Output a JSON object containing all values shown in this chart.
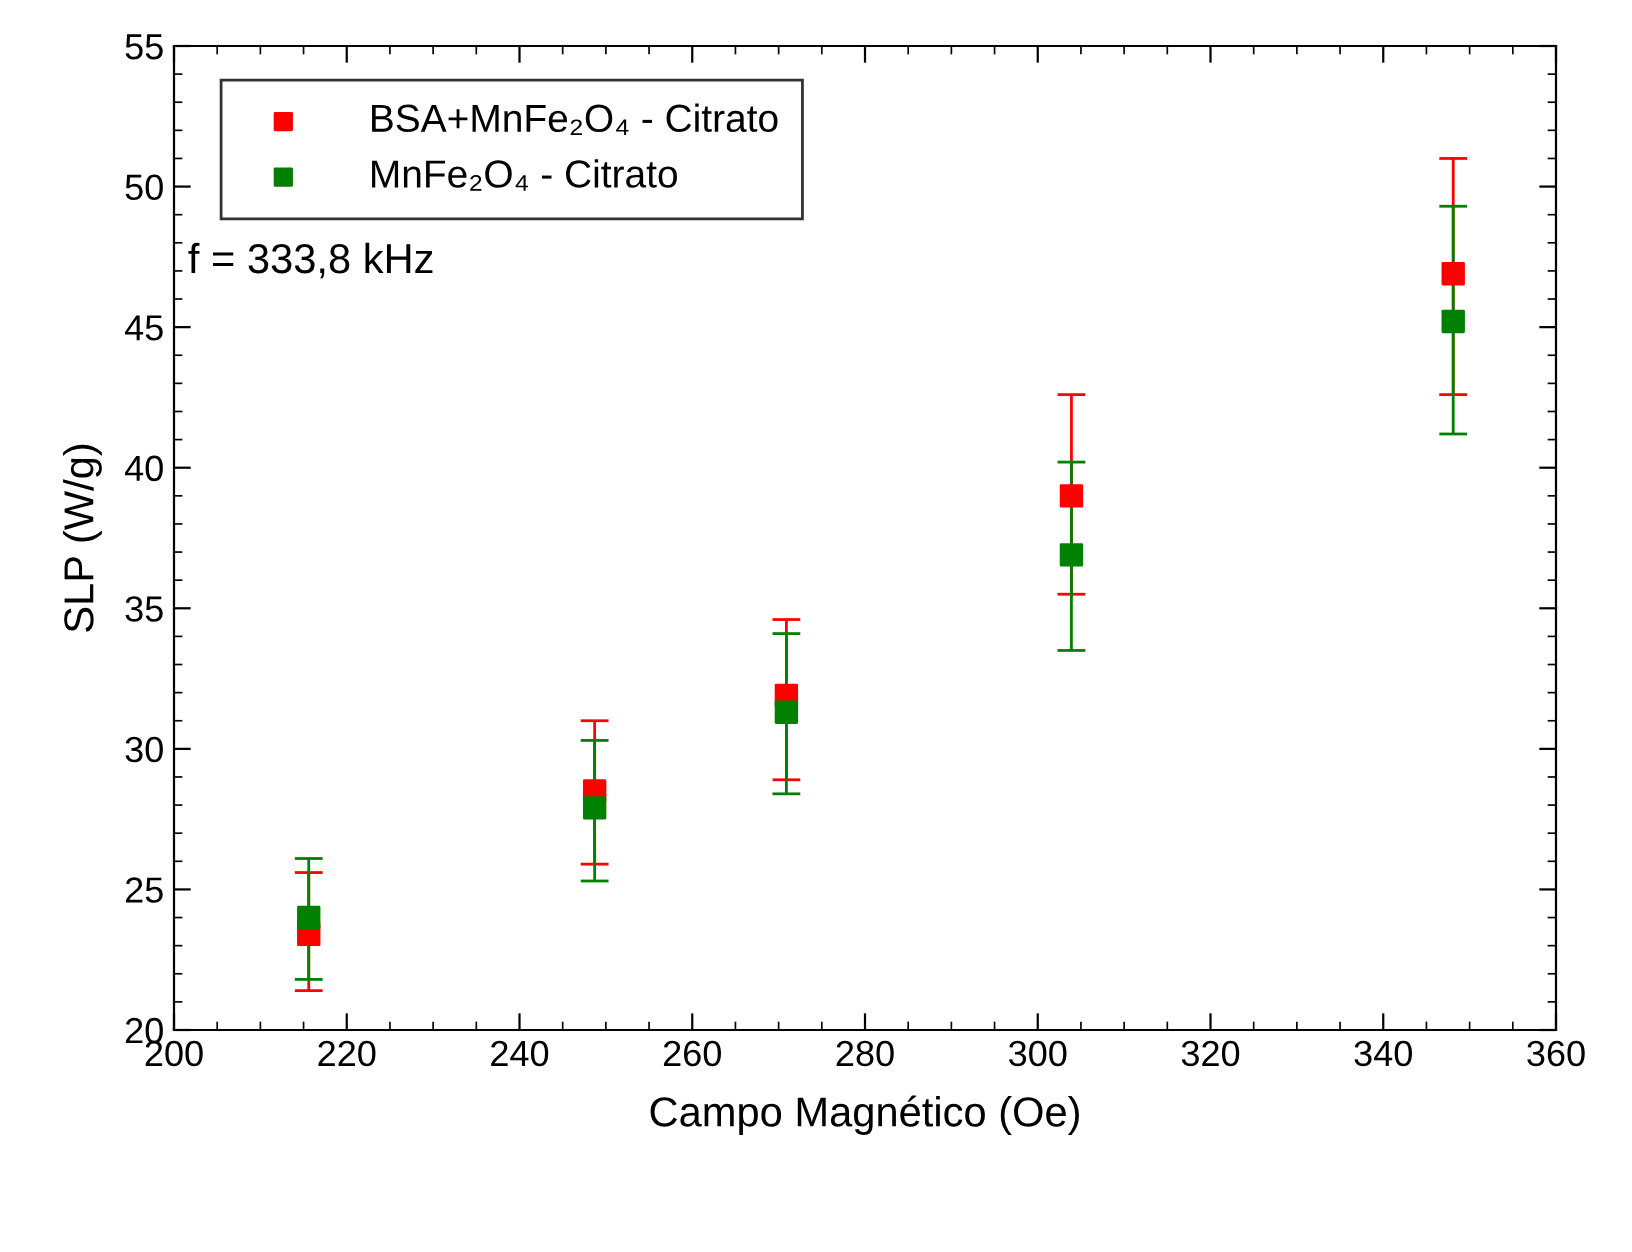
{
  "chart_data": {
    "type": "scatter",
    "xlabel": "Campo Magnético (Oe)",
    "ylabel": "SLP (W/g)",
    "xlim": [
      200,
      360
    ],
    "xticks": [
      200,
      220,
      240,
      260,
      280,
      300,
      320,
      340,
      360
    ],
    "ylim": [
      20,
      55
    ],
    "yticks": [
      20,
      25,
      30,
      35,
      40,
      45,
      50,
      55
    ],
    "grid": false,
    "legend": "top left",
    "marker": "square",
    "annotations": [
      "f = 333,8 kHz"
    ],
    "series": [
      {
        "name": "BSA+MnFe₂O₄ - Citrato",
        "color": "#ff0000",
        "x": [
          215.6,
          248.7,
          270.9,
          303.9,
          348.1
        ],
        "values": [
          23.4,
          28.5,
          31.9,
          39.0,
          46.9
        ],
        "errors": [
          [
            21.4,
            25.6
          ],
          [
            25.9,
            31.0
          ],
          [
            28.9,
            34.6
          ],
          [
            35.5,
            42.6
          ],
          [
            42.6,
            51.0
          ]
        ]
      },
      {
        "name": "MnFe₂O₄ - Citrato",
        "color": "#008000",
        "x": [
          215.6,
          248.7,
          270.9,
          303.9,
          348.1
        ],
        "values": [
          24.0,
          27.9,
          31.3,
          36.9,
          45.2
        ],
        "errors": [
          [
            21.8,
            26.1
          ],
          [
            25.3,
            30.3
          ],
          [
            28.4,
            34.1
          ],
          [
            33.5,
            40.2
          ],
          [
            41.2,
            49.3
          ]
        ]
      }
    ]
  }
}
